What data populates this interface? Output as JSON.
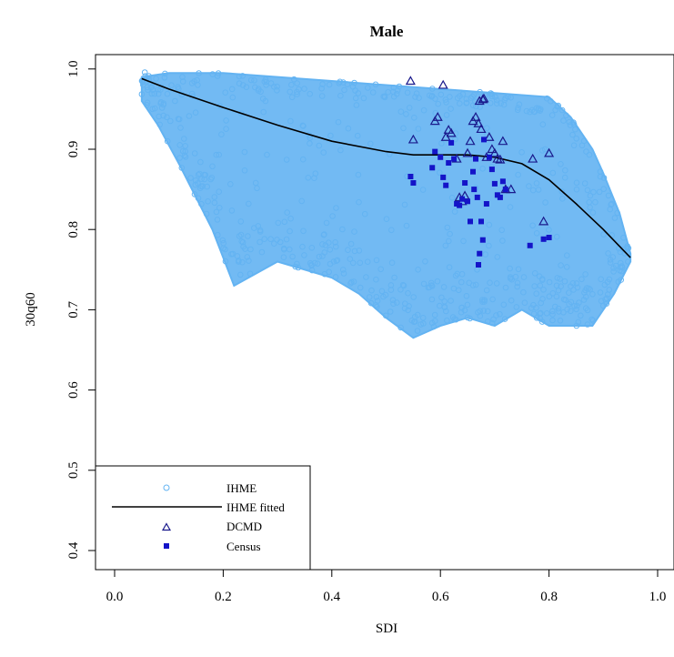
{
  "chart_data": {
    "type": "scatter",
    "title": "Male",
    "xlabel": "SDI",
    "ylabel": "30q60",
    "xlim": [
      -0.04,
      1.04
    ],
    "ylim": [
      0.38,
      1.02
    ],
    "xticks": [
      "0.0",
      "0.2",
      "0.4",
      "0.6",
      "0.8",
      "1.0"
    ],
    "yticks": [
      "0.4",
      "0.5",
      "0.6",
      "0.7",
      "0.8",
      "0.9",
      "1.0"
    ],
    "grid": false,
    "legend_position": "bottom-left",
    "colors": {
      "ihme": "#63b3f2",
      "fitted": "#000000",
      "dcmd": "#1a1a8c",
      "census": "#1414c8"
    },
    "series": [
      {
        "name": "IHME",
        "marker": "open-circle",
        "envelope_upper": [
          [
            0.05,
            0.99
          ],
          [
            0.1,
            0.995
          ],
          [
            0.2,
            0.995
          ],
          [
            0.3,
            0.99
          ],
          [
            0.4,
            0.985
          ],
          [
            0.5,
            0.98
          ],
          [
            0.6,
            0.975
          ],
          [
            0.7,
            0.97
          ],
          [
            0.8,
            0.965
          ],
          [
            0.84,
            0.94
          ],
          [
            0.88,
            0.9
          ],
          [
            0.9,
            0.87
          ],
          [
            0.93,
            0.82
          ],
          [
            0.95,
            0.77
          ]
        ],
        "envelope_lower": [
          [
            0.95,
            0.76
          ],
          [
            0.92,
            0.72
          ],
          [
            0.88,
            0.68
          ],
          [
            0.8,
            0.68
          ],
          [
            0.75,
            0.7
          ],
          [
            0.7,
            0.68
          ],
          [
            0.65,
            0.69
          ],
          [
            0.6,
            0.68
          ],
          [
            0.55,
            0.665
          ],
          [
            0.5,
            0.69
          ],
          [
            0.45,
            0.72
          ],
          [
            0.4,
            0.74
          ],
          [
            0.3,
            0.76
          ],
          [
            0.22,
            0.73
          ],
          [
            0.18,
            0.8
          ],
          [
            0.12,
            0.88
          ],
          [
            0.08,
            0.93
          ],
          [
            0.05,
            0.96
          ]
        ]
      },
      {
        "name": "IHME fitted",
        "marker": "line",
        "x": [
          0.05,
          0.1,
          0.2,
          0.3,
          0.4,
          0.5,
          0.55,
          0.6,
          0.65,
          0.7,
          0.75,
          0.8,
          0.85,
          0.9,
          0.95
        ],
        "y": [
          0.988,
          0.975,
          0.952,
          0.93,
          0.91,
          0.897,
          0.893,
          0.893,
          0.893,
          0.89,
          0.882,
          0.862,
          0.832,
          0.8,
          0.765
        ]
      },
      {
        "name": "DCMD",
        "marker": "triangle",
        "x": [
          0.545,
          0.55,
          0.59,
          0.595,
          0.605,
          0.61,
          0.615,
          0.62,
          0.63,
          0.635,
          0.64,
          0.645,
          0.65,
          0.655,
          0.66,
          0.665,
          0.67,
          0.672,
          0.675,
          0.678,
          0.68,
          0.685,
          0.69,
          0.695,
          0.7,
          0.705,
          0.71,
          0.715,
          0.72,
          0.73,
          0.77,
          0.79,
          0.8
        ],
        "y": [
          0.985,
          0.912,
          0.935,
          0.94,
          0.98,
          0.915,
          0.924,
          0.92,
          0.888,
          0.84,
          0.835,
          0.842,
          0.895,
          0.91,
          0.935,
          0.94,
          0.932,
          0.96,
          0.925,
          0.962,
          0.963,
          0.89,
          0.915,
          0.9,
          0.895,
          0.888,
          0.887,
          0.91,
          0.85,
          0.85,
          0.888,
          0.81,
          0.895
        ]
      },
      {
        "name": "Census",
        "marker": "filled-square",
        "x": [
          0.545,
          0.55,
          0.585,
          0.59,
          0.6,
          0.605,
          0.61,
          0.615,
          0.62,
          0.625,
          0.63,
          0.635,
          0.64,
          0.645,
          0.65,
          0.655,
          0.66,
          0.662,
          0.665,
          0.668,
          0.67,
          0.672,
          0.675,
          0.678,
          0.68,
          0.685,
          0.69,
          0.695,
          0.7,
          0.705,
          0.71,
          0.715,
          0.72,
          0.765,
          0.79,
          0.8
        ],
        "y": [
          0.866,
          0.858,
          0.877,
          0.897,
          0.89,
          0.865,
          0.855,
          0.883,
          0.908,
          0.888,
          0.832,
          0.83,
          0.838,
          0.858,
          0.835,
          0.81,
          0.872,
          0.85,
          0.888,
          0.84,
          0.756,
          0.77,
          0.81,
          0.787,
          0.912,
          0.832,
          0.89,
          0.875,
          0.857,
          0.843,
          0.84,
          0.86,
          0.85,
          0.78,
          0.788,
          0.79
        ]
      }
    ]
  }
}
